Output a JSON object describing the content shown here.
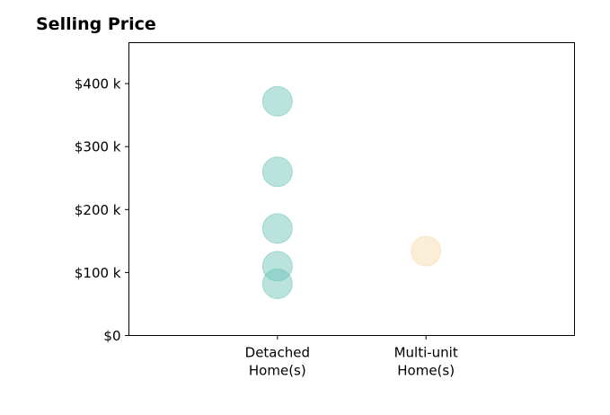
{
  "chart_data": {
    "type": "scatter",
    "title": "Selling Price",
    "xlabel": "",
    "ylabel": "",
    "categories": [
      [
        "Detached",
        "Home(s)"
      ],
      [
        "Multi-unit",
        "Home(s)"
      ]
    ],
    "ylim": [
      0,
      465000
    ],
    "xlim": [
      -1,
      2
    ],
    "y_ticks": [
      {
        "value": 0,
        "label": "$0"
      },
      {
        "value": 100000,
        "label": "$100 k"
      },
      {
        "value": 200000,
        "label": "$200 k"
      },
      {
        "value": 300000,
        "label": "$300 k"
      },
      {
        "value": 400000,
        "label": "$400 k"
      }
    ],
    "series": [
      {
        "category_index": 0,
        "color": "#66c2b6",
        "values": [
          372000,
          260000,
          170000,
          110000,
          82000
        ]
      },
      {
        "category_index": 1,
        "color": "#f5d9a6",
        "values": [
          134000
        ]
      }
    ],
    "grid": false,
    "legend": "none"
  }
}
